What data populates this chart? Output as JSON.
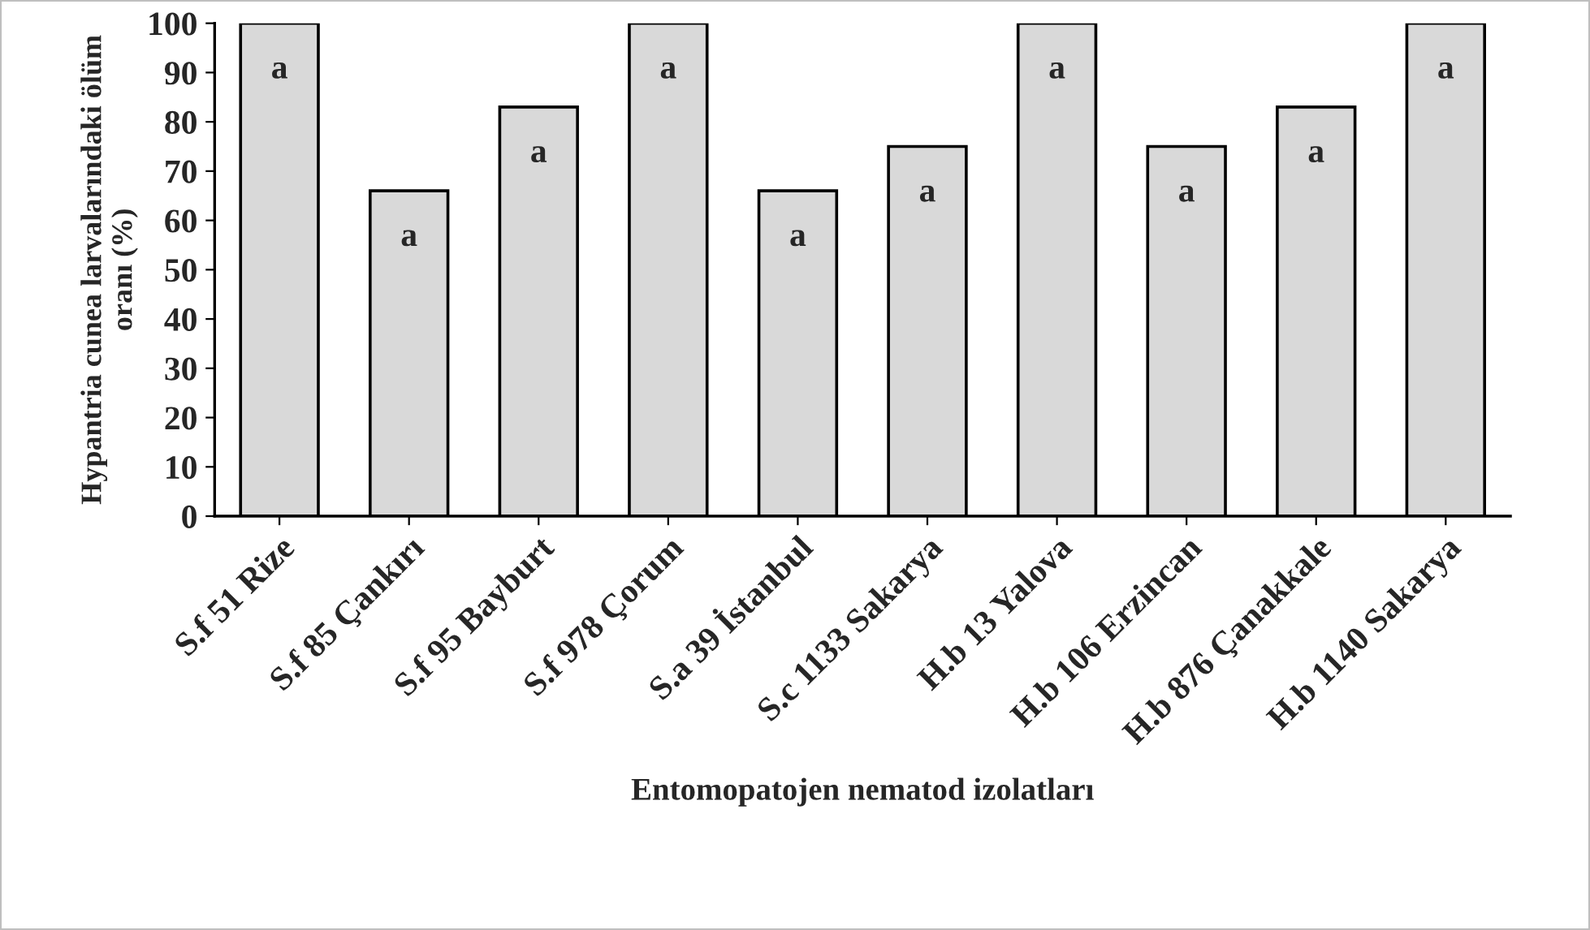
{
  "chart_data": {
    "type": "bar",
    "xlabel": "Entomopatojen nematod izolatları",
    "ylabel": "Hypantria cunea larvalarındaki ölüm oranı (%)",
    "categories": [
      "S.f 51 Rize",
      "S.f 85 Çankırı",
      "S.f 95 Bayburt",
      "S.f 978 Çorum",
      "S.a 39 İstanbul",
      "S.c 1133 Sakarya",
      "H.b 13 Yalova",
      "H.b 106 Erzincan",
      "H.b 876 Çanakkale",
      "H.b 1140 Sakarya"
    ],
    "values": [
      100,
      66,
      83,
      100,
      66,
      75,
      100,
      75,
      83,
      100
    ],
    "color": "#d9d9d9",
    "ylim": [
      0,
      100
    ],
    "yticks": [
      0,
      10,
      20,
      30,
      40,
      50,
      60,
      70,
      80,
      90,
      100
    ],
    "grid": false,
    "annotations": [
      {
        "text": "a",
        "x": "S.f 51 Rize",
        "y": 100
      },
      {
        "text": "a",
        "x": "S.f 85 Çankırı",
        "y": 66
      },
      {
        "text": "a",
        "x": "S.f 95 Bayburt",
        "y": 83
      },
      {
        "text": "a",
        "x": "S.f 978 Çorum",
        "y": 100
      },
      {
        "text": "a",
        "x": "S.a 39 İstanbul",
        "y": 66
      },
      {
        "text": "a",
        "x": "S.c 1133 Sakarya",
        "y": 75
      },
      {
        "text": "a",
        "x": "H.b 13 Yalova",
        "y": 100
      },
      {
        "text": "a",
        "x": "H.b 106 Erzincan",
        "y": 75
      },
      {
        "text": "a",
        "x": "H.b 876 Çanakkale",
        "y": 83
      },
      {
        "text": "a",
        "x": "H.b 1140 Sakarya",
        "y": 100
      }
    ]
  }
}
